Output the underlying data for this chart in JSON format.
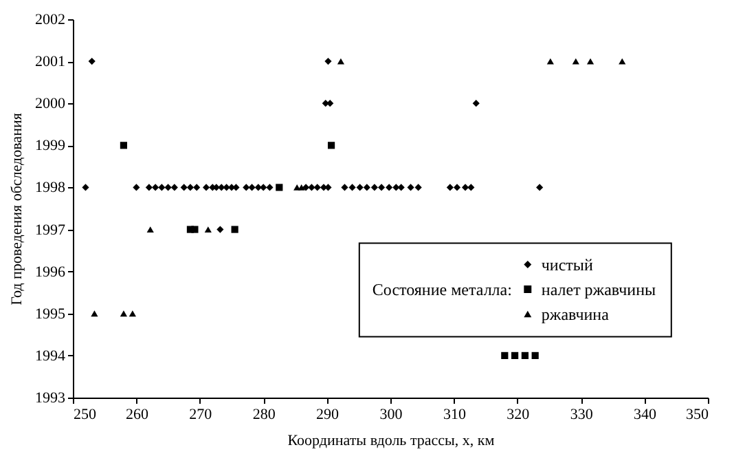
{
  "chart_data": {
    "type": "scatter",
    "xlabel": "Координаты вдоль трассы, x, км",
    "ylabel": "Год проведения обследования",
    "legend_title": "Состояние металла:",
    "legend": "right",
    "grid": false,
    "xlim": [
      250,
      350
    ],
    "xticks": [
      250,
      260,
      270,
      280,
      290,
      300,
      310,
      320,
      330,
      340,
      350
    ],
    "ylim": [
      1993,
      2002
    ],
    "yticks": [
      1993,
      1994,
      1995,
      1996,
      1997,
      1998,
      1999,
      2000,
      2001,
      2002
    ],
    "series": [
      {
        "name": "чистый",
        "color": "#000000",
        "marker": "diamond",
        "x": [
          252,
          253,
          260,
          262,
          263,
          264,
          265,
          266,
          267.5,
          268.5,
          269.5,
          271,
          272,
          272.6,
          273.4,
          274.2,
          275,
          275.7,
          277.3,
          278.2,
          279.2,
          280,
          281,
          286.7,
          287.6,
          288.5,
          289.5,
          290.2,
          273.2,
          290.2,
          289.8,
          290.5,
          292.8,
          294,
          295.2,
          296.3,
          297.5,
          298.6,
          299.8,
          300.9,
          301.7,
          303.2,
          304.4,
          309.4,
          310.5,
          311.8,
          312.7,
          323.5,
          313.5
        ],
        "values": [
          1998,
          2001,
          1998,
          1998,
          1998,
          1998,
          1998,
          1998,
          1998,
          1998,
          1998,
          1998,
          1998,
          1998,
          1998,
          1998,
          1998,
          1998,
          1998,
          1998,
          1998,
          1998,
          1998,
          1998,
          1998,
          1998,
          1998,
          1998,
          1997,
          2001,
          2000,
          2000,
          1998,
          1998,
          1998,
          1998,
          1998,
          1998,
          1998,
          1998,
          1998,
          1998,
          1998,
          1998,
          1998,
          1998,
          1998,
          1998,
          2000
        ]
      },
      {
        "name": "налет ржавчины",
        "color": "#000000",
        "marker": "square",
        "x": [
          258,
          282.5,
          268.5,
          269.2,
          275.5,
          290.7,
          318,
          319.6,
          321.2,
          322.8
        ],
        "values": [
          1999,
          1998,
          1997,
          1997,
          1997,
          1999,
          1994,
          1994,
          1994,
          1994
        ]
      },
      {
        "name": "ржавчина",
        "color": "#000000",
        "marker": "triangle",
        "x": [
          253.4,
          258,
          259.4,
          262.2,
          271.3,
          285.3,
          286,
          292.2,
          325.2,
          329.2,
          331.5,
          336.5
        ],
        "values": [
          1995,
          1995,
          1995,
          1997,
          1997,
          1998,
          1998,
          2001,
          2001,
          2001,
          2001,
          2001
        ]
      }
    ]
  }
}
